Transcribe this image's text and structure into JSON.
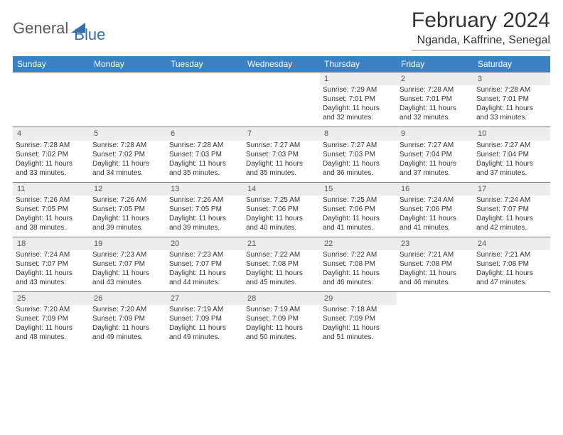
{
  "logo": {
    "text_general": "General",
    "text_blue": "Blue"
  },
  "header": {
    "title": "February 2024",
    "subtitle": "Nganda, Kaffrine, Senegal"
  },
  "colors": {
    "header_bg": "#3b82c4",
    "header_text": "#ffffff",
    "daynum_bg": "#ededed",
    "border": "#7a7a7a",
    "logo_blue": "#2f6fb0",
    "logo_gray": "#5a5a5a"
  },
  "weekdays": [
    "Sunday",
    "Monday",
    "Tuesday",
    "Wednesday",
    "Thursday",
    "Friday",
    "Saturday"
  ],
  "weeks": [
    [
      null,
      null,
      null,
      null,
      {
        "n": "1",
        "sr": "Sunrise: 7:29 AM",
        "ss": "Sunset: 7:01 PM",
        "d1": "Daylight: 11 hours",
        "d2": "and 32 minutes."
      },
      {
        "n": "2",
        "sr": "Sunrise: 7:28 AM",
        "ss": "Sunset: 7:01 PM",
        "d1": "Daylight: 11 hours",
        "d2": "and 32 minutes."
      },
      {
        "n": "3",
        "sr": "Sunrise: 7:28 AM",
        "ss": "Sunset: 7:01 PM",
        "d1": "Daylight: 11 hours",
        "d2": "and 33 minutes."
      }
    ],
    [
      {
        "n": "4",
        "sr": "Sunrise: 7:28 AM",
        "ss": "Sunset: 7:02 PM",
        "d1": "Daylight: 11 hours",
        "d2": "and 33 minutes."
      },
      {
        "n": "5",
        "sr": "Sunrise: 7:28 AM",
        "ss": "Sunset: 7:02 PM",
        "d1": "Daylight: 11 hours",
        "d2": "and 34 minutes."
      },
      {
        "n": "6",
        "sr": "Sunrise: 7:28 AM",
        "ss": "Sunset: 7:03 PM",
        "d1": "Daylight: 11 hours",
        "d2": "and 35 minutes."
      },
      {
        "n": "7",
        "sr": "Sunrise: 7:27 AM",
        "ss": "Sunset: 7:03 PM",
        "d1": "Daylight: 11 hours",
        "d2": "and 35 minutes."
      },
      {
        "n": "8",
        "sr": "Sunrise: 7:27 AM",
        "ss": "Sunset: 7:03 PM",
        "d1": "Daylight: 11 hours",
        "d2": "and 36 minutes."
      },
      {
        "n": "9",
        "sr": "Sunrise: 7:27 AM",
        "ss": "Sunset: 7:04 PM",
        "d1": "Daylight: 11 hours",
        "d2": "and 37 minutes."
      },
      {
        "n": "10",
        "sr": "Sunrise: 7:27 AM",
        "ss": "Sunset: 7:04 PM",
        "d1": "Daylight: 11 hours",
        "d2": "and 37 minutes."
      }
    ],
    [
      {
        "n": "11",
        "sr": "Sunrise: 7:26 AM",
        "ss": "Sunset: 7:05 PM",
        "d1": "Daylight: 11 hours",
        "d2": "and 38 minutes."
      },
      {
        "n": "12",
        "sr": "Sunrise: 7:26 AM",
        "ss": "Sunset: 7:05 PM",
        "d1": "Daylight: 11 hours",
        "d2": "and 39 minutes."
      },
      {
        "n": "13",
        "sr": "Sunrise: 7:26 AM",
        "ss": "Sunset: 7:05 PM",
        "d1": "Daylight: 11 hours",
        "d2": "and 39 minutes."
      },
      {
        "n": "14",
        "sr": "Sunrise: 7:25 AM",
        "ss": "Sunset: 7:06 PM",
        "d1": "Daylight: 11 hours",
        "d2": "and 40 minutes."
      },
      {
        "n": "15",
        "sr": "Sunrise: 7:25 AM",
        "ss": "Sunset: 7:06 PM",
        "d1": "Daylight: 11 hours",
        "d2": "and 41 minutes."
      },
      {
        "n": "16",
        "sr": "Sunrise: 7:24 AM",
        "ss": "Sunset: 7:06 PM",
        "d1": "Daylight: 11 hours",
        "d2": "and 41 minutes."
      },
      {
        "n": "17",
        "sr": "Sunrise: 7:24 AM",
        "ss": "Sunset: 7:07 PM",
        "d1": "Daylight: 11 hours",
        "d2": "and 42 minutes."
      }
    ],
    [
      {
        "n": "18",
        "sr": "Sunrise: 7:24 AM",
        "ss": "Sunset: 7:07 PM",
        "d1": "Daylight: 11 hours",
        "d2": "and 43 minutes."
      },
      {
        "n": "19",
        "sr": "Sunrise: 7:23 AM",
        "ss": "Sunset: 7:07 PM",
        "d1": "Daylight: 11 hours",
        "d2": "and 43 minutes."
      },
      {
        "n": "20",
        "sr": "Sunrise: 7:23 AM",
        "ss": "Sunset: 7:07 PM",
        "d1": "Daylight: 11 hours",
        "d2": "and 44 minutes."
      },
      {
        "n": "21",
        "sr": "Sunrise: 7:22 AM",
        "ss": "Sunset: 7:08 PM",
        "d1": "Daylight: 11 hours",
        "d2": "and 45 minutes."
      },
      {
        "n": "22",
        "sr": "Sunrise: 7:22 AM",
        "ss": "Sunset: 7:08 PM",
        "d1": "Daylight: 11 hours",
        "d2": "and 46 minutes."
      },
      {
        "n": "23",
        "sr": "Sunrise: 7:21 AM",
        "ss": "Sunset: 7:08 PM",
        "d1": "Daylight: 11 hours",
        "d2": "and 46 minutes."
      },
      {
        "n": "24",
        "sr": "Sunrise: 7:21 AM",
        "ss": "Sunset: 7:08 PM",
        "d1": "Daylight: 11 hours",
        "d2": "and 47 minutes."
      }
    ],
    [
      {
        "n": "25",
        "sr": "Sunrise: 7:20 AM",
        "ss": "Sunset: 7:09 PM",
        "d1": "Daylight: 11 hours",
        "d2": "and 48 minutes."
      },
      {
        "n": "26",
        "sr": "Sunrise: 7:20 AM",
        "ss": "Sunset: 7:09 PM",
        "d1": "Daylight: 11 hours",
        "d2": "and 49 minutes."
      },
      {
        "n": "27",
        "sr": "Sunrise: 7:19 AM",
        "ss": "Sunset: 7:09 PM",
        "d1": "Daylight: 11 hours",
        "d2": "and 49 minutes."
      },
      {
        "n": "28",
        "sr": "Sunrise: 7:19 AM",
        "ss": "Sunset: 7:09 PM",
        "d1": "Daylight: 11 hours",
        "d2": "and 50 minutes."
      },
      {
        "n": "29",
        "sr": "Sunrise: 7:18 AM",
        "ss": "Sunset: 7:09 PM",
        "d1": "Daylight: 11 hours",
        "d2": "and 51 minutes."
      },
      null,
      null
    ]
  ]
}
